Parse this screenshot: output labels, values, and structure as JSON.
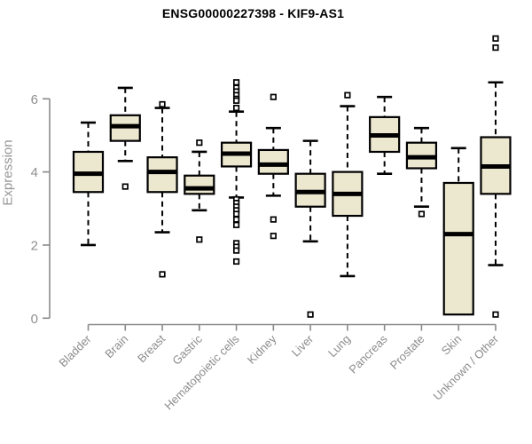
{
  "chart_data": {
    "type": "boxplot",
    "title": "ENSG00000227398 - KIF9-AS1",
    "ylabel": "Expression",
    "xlabel": "",
    "ylim": [
      0,
      6
    ],
    "yticks": [
      0,
      2,
      4,
      6
    ],
    "grid": false,
    "legend": "none",
    "categories": [
      "Bladder",
      "Brain",
      "Breast",
      "Gastric",
      "Hematopoietic cells",
      "Kidney",
      "Liver",
      "Lung",
      "Pancreas",
      "Prostate",
      "Skin",
      "Unknown / Other"
    ],
    "series": [
      {
        "label": "Bladder",
        "whislo": 2.0,
        "q1": 3.45,
        "med": 3.95,
        "q3": 4.55,
        "whishi": 5.35,
        "outliers": []
      },
      {
        "label": "Brain",
        "whislo": 4.3,
        "q1": 4.85,
        "med": 5.25,
        "q3": 5.55,
        "whishi": 6.3,
        "outliers": [
          3.6
        ]
      },
      {
        "label": "Breast",
        "whislo": 2.35,
        "q1": 3.45,
        "med": 4.0,
        "q3": 4.4,
        "whishi": 5.75,
        "outliers": [
          5.85,
          1.2
        ]
      },
      {
        "label": "Gastric",
        "whislo": 2.95,
        "q1": 3.4,
        "med": 3.55,
        "q3": 3.9,
        "whishi": 4.55,
        "outliers": [
          4.8,
          2.15
        ]
      },
      {
        "label": "Hematopoietic cells",
        "whislo": 3.3,
        "q1": 4.15,
        "med": 4.5,
        "q3": 4.8,
        "whishi": 5.65,
        "outliers": [
          6.45,
          6.3,
          6.2,
          6.1,
          6.0,
          5.95,
          5.75,
          3.25,
          3.15,
          3.05,
          2.95,
          2.85,
          2.7,
          2.55,
          2.05,
          1.95,
          1.85,
          1.55
        ]
      },
      {
        "label": "Kidney",
        "whislo": 3.35,
        "q1": 3.95,
        "med": 4.2,
        "q3": 4.6,
        "whishi": 5.2,
        "outliers": [
          6.05,
          2.7,
          2.25
        ]
      },
      {
        "label": "Liver",
        "whislo": 2.1,
        "q1": 3.05,
        "med": 3.45,
        "q3": 3.95,
        "whishi": 4.85,
        "outliers": [
          0.1
        ]
      },
      {
        "label": "Lung",
        "whislo": 1.15,
        "q1": 2.8,
        "med": 3.4,
        "q3": 4.0,
        "whishi": 5.8,
        "outliers": [
          6.1
        ]
      },
      {
        "label": "Pancreas",
        "whislo": 3.95,
        "q1": 4.55,
        "med": 5.0,
        "q3": 5.5,
        "whishi": 6.05,
        "outliers": []
      },
      {
        "label": "Prostate",
        "whislo": 3.05,
        "q1": 4.1,
        "med": 4.4,
        "q3": 4.8,
        "whishi": 5.2,
        "outliers": [
          2.85
        ]
      },
      {
        "label": "Skin",
        "whislo": 0.1,
        "q1": 0.1,
        "med": 2.3,
        "q3": 3.7,
        "whishi": 4.65,
        "outliers": []
      },
      {
        "label": "Unknown / Other",
        "whislo": 1.45,
        "q1": 3.4,
        "med": 4.15,
        "q3": 4.95,
        "whishi": 6.45,
        "outliers": [
          7.65,
          7.4,
          0.1
        ]
      }
    ]
  },
  "colors": {
    "axis": "#8a8a8a",
    "tick_label": "#909090",
    "category_label": "#8c8c8c",
    "title_text": "#000000",
    "box_fill": "#ece7cf",
    "box_border": "#000000",
    "median": "#000000",
    "whisker": "#000000",
    "outlier_fill": "#ffffff"
  }
}
